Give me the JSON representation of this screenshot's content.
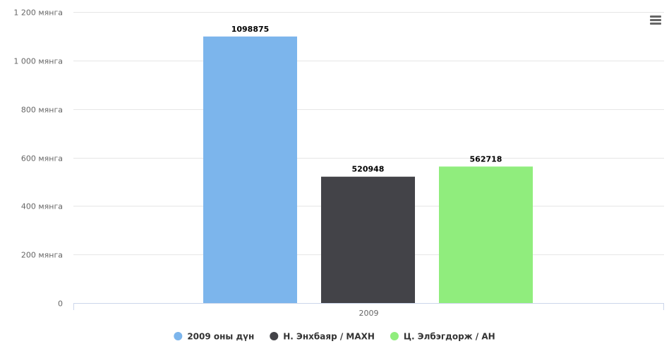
{
  "chart_data": {
    "type": "bar",
    "categories": [
      "2009"
    ],
    "series": [
      {
        "name": "2009 оны дүн",
        "values": [
          1098875
        ],
        "color": "#7cb5ec"
      },
      {
        "name": "Н. Энхбаяр / МАХН",
        "values": [
          520948
        ],
        "color": "#434348"
      },
      {
        "name": "Ц. Элбэгдорж / АН",
        "values": [
          562718
        ],
        "color": "#90ed7d"
      }
    ],
    "ylim": [
      0,
      1200000
    ],
    "y_ticks": [
      {
        "value": 0,
        "label": "0"
      },
      {
        "value": 200000,
        "label": "200 мянга"
      },
      {
        "value": 400000,
        "label": "400 мянга"
      },
      {
        "value": 600000,
        "label": "600 мянга"
      },
      {
        "value": 800000,
        "label": "800 мянга"
      },
      {
        "value": 1000000,
        "label": "1 000 мянга"
      },
      {
        "value": 1200000,
        "label": "1 200 мянга"
      }
    ],
    "data_labels": true,
    "grid": true,
    "legend_position": "bottom-center"
  },
  "menu": {
    "icon": "hamburger-menu-icon"
  }
}
